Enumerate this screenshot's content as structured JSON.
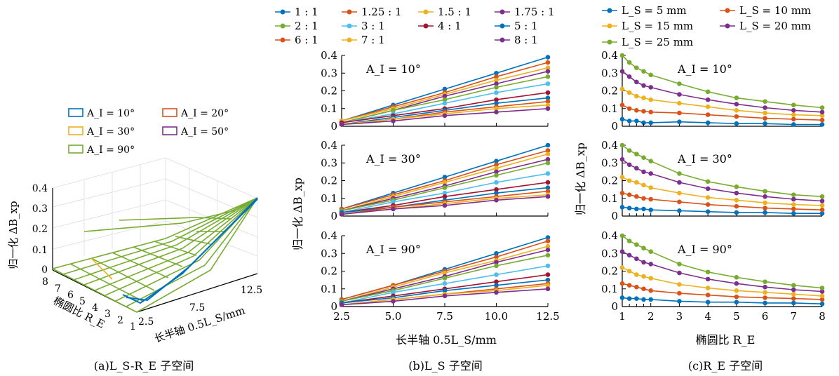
{
  "panel_a": {
    "caption": "(a)L_S-R_E 子空间",
    "ylabel": "归一化 ΔB_xp",
    "xlabel": "长半轴 0.5L_S/mm",
    "rlabel": "椭圆比 R_E",
    "legend": [
      "A_I = 10°",
      "A_I = 20°",
      "A_I = 30°",
      "A_I = 50°",
      "A_I = 90°"
    ],
    "z_ticks": [
      "0",
      "0.1",
      "0.2",
      "0.3",
      "0.4"
    ],
    "x_ticks": [
      "2.5",
      "7.5",
      "12.5"
    ],
    "r_ticks": [
      "8",
      "7",
      "6",
      "5",
      "4",
      "3",
      "2",
      "1"
    ]
  },
  "panel_b": {
    "caption": "(b)L_S 子空间",
    "ylabel": "归一化 ΔB_xp",
    "xlabel": "长半轴 0.5L_S/mm",
    "legend": [
      "1 : 1",
      "1.25 : 1",
      "1.5 : 1",
      "1.75 : 1",
      "2 : 1",
      "3 : 1",
      "4 : 1",
      "5 : 1",
      "6 : 1",
      "7 : 1",
      "8 : 1"
    ],
    "x_ticks": [
      "2.5",
      "5.0",
      "7.5",
      "10.0",
      "12.5"
    ],
    "y_ticks": [
      "0",
      "0.1",
      "0.2",
      "0.3",
      "0.4"
    ],
    "subplot_labels": [
      "A_I = 10°",
      "A_I = 30°",
      "A_I = 90°"
    ]
  },
  "panel_c": {
    "caption": "(c)R_E 子空间",
    "ylabel": "归一化 ΔB_xp",
    "xlabel": "椭圆比 R_E",
    "legend": [
      "L_S = 5 mm",
      "L_S = 10 mm",
      "L_S = 15 mm",
      "L_S = 20 mm",
      "L_S = 25 mm"
    ],
    "x_ticks": [
      "1",
      "2",
      "3",
      "4",
      "5",
      "6",
      "7",
      "8"
    ],
    "y_ticks": [
      "0",
      "0.1",
      "0.2",
      "0.3",
      "0.4"
    ],
    "subplot_labels": [
      "A_I = 10°",
      "A_I = 30°",
      "A_I = 90°"
    ]
  },
  "colors": {
    "blue": "#0072BD",
    "orange": "#D95319",
    "yellow": "#EDB120",
    "purple": "#7E2F8E",
    "green": "#77AC30",
    "cyan": "#4DBEEE",
    "darkred": "#A2142F"
  },
  "chart_data": [
    {
      "type": "line",
      "title": "L_S 子空间",
      "x": [
        2.5,
        5.0,
        7.5,
        10.0,
        12.5
      ],
      "xlim": [
        2.5,
        12.5
      ],
      "ylim": [
        0,
        0.4
      ],
      "subplots": [
        {
          "label": "A_I = 10°",
          "series": [
            {
              "name": "1 : 1",
              "color": "#0072BD",
              "values": [
                0.03,
                0.12,
                0.21,
                0.3,
                0.39
              ]
            },
            {
              "name": "1.25 : 1",
              "color": "#D95319",
              "values": [
                0.03,
                0.11,
                0.19,
                0.28,
                0.36
              ]
            },
            {
              "name": "1.5 : 1",
              "color": "#EDB120",
              "values": [
                0.03,
                0.1,
                0.18,
                0.26,
                0.33
              ]
            },
            {
              "name": "1.75 : 1",
              "color": "#7E2F8E",
              "values": [
                0.02,
                0.09,
                0.17,
                0.24,
                0.31
              ]
            },
            {
              "name": "2 : 1",
              "color": "#77AC30",
              "values": [
                0.02,
                0.09,
                0.15,
                0.22,
                0.28
              ]
            },
            {
              "name": "3 : 1",
              "color": "#4DBEEE",
              "values": [
                0.02,
                0.07,
                0.13,
                0.19,
                0.24
              ]
            },
            {
              "name": "4 : 1",
              "color": "#A2142F",
              "values": [
                0.02,
                0.06,
                0.1,
                0.15,
                0.19
              ]
            },
            {
              "name": "5 : 1",
              "color": "#0072BD",
              "values": [
                0.01,
                0.05,
                0.09,
                0.13,
                0.16
              ]
            },
            {
              "name": "6 : 1",
              "color": "#D95319",
              "values": [
                0.01,
                0.04,
                0.08,
                0.11,
                0.14
              ]
            },
            {
              "name": "7 : 1",
              "color": "#EDB120",
              "values": [
                0.01,
                0.04,
                0.07,
                0.1,
                0.12
              ]
            },
            {
              "name": "8 : 1",
              "color": "#7E2F8E",
              "values": [
                0.01,
                0.03,
                0.06,
                0.08,
                0.1
              ]
            }
          ]
        },
        {
          "label": "A_I = 30°",
          "series": [
            {
              "name": "1 : 1",
              "color": "#0072BD",
              "values": [
                0.04,
                0.13,
                0.22,
                0.31,
                0.4
              ]
            },
            {
              "name": "1.25 : 1",
              "color": "#D95319",
              "values": [
                0.04,
                0.12,
                0.2,
                0.29,
                0.37
              ]
            },
            {
              "name": "1.5 : 1",
              "color": "#EDB120",
              "values": [
                0.03,
                0.11,
                0.19,
                0.27,
                0.35
              ]
            },
            {
              "name": "1.75 : 1",
              "color": "#7E2F8E",
              "values": [
                0.03,
                0.1,
                0.17,
                0.25,
                0.32
              ]
            },
            {
              "name": "2 : 1",
              "color": "#77AC30",
              "values": [
                0.03,
                0.09,
                0.16,
                0.23,
                0.3
              ]
            },
            {
              "name": "3 : 1",
              "color": "#4DBEEE",
              "values": [
                0.02,
                0.08,
                0.13,
                0.19,
                0.24
              ]
            },
            {
              "name": "4 : 1",
              "color": "#A2142F",
              "values": [
                0.02,
                0.06,
                0.11,
                0.15,
                0.19
              ]
            },
            {
              "name": "5 : 1",
              "color": "#0072BD",
              "values": [
                0.02,
                0.05,
                0.09,
                0.13,
                0.16
              ]
            },
            {
              "name": "6 : 1",
              "color": "#D95319",
              "values": [
                0.01,
                0.05,
                0.08,
                0.11,
                0.14
              ]
            },
            {
              "name": "7 : 1",
              "color": "#EDB120",
              "values": [
                0.01,
                0.04,
                0.07,
                0.1,
                0.12
              ]
            },
            {
              "name": "8 : 1",
              "color": "#7E2F8E",
              "values": [
                0.01,
                0.04,
                0.06,
                0.09,
                0.11
              ]
            }
          ]
        },
        {
          "label": "A_I = 90°",
          "series": [
            {
              "name": "1 : 1",
              "color": "#0072BD",
              "values": [
                0.04,
                0.12,
                0.21,
                0.3,
                0.39
              ]
            },
            {
              "name": "1.25 : 1",
              "color": "#D95319",
              "values": [
                0.04,
                0.12,
                0.2,
                0.28,
                0.37
              ]
            },
            {
              "name": "1.5 : 1",
              "color": "#EDB120",
              "values": [
                0.03,
                0.11,
                0.19,
                0.26,
                0.34
              ]
            },
            {
              "name": "1.75 : 1",
              "color": "#7E2F8E",
              "values": [
                0.03,
                0.1,
                0.17,
                0.25,
                0.32
              ]
            },
            {
              "name": "2 : 1",
              "color": "#77AC30",
              "values": [
                0.03,
                0.09,
                0.16,
                0.23,
                0.29
              ]
            },
            {
              "name": "3 : 1",
              "color": "#4DBEEE",
              "values": [
                0.02,
                0.08,
                0.13,
                0.18,
                0.23
              ]
            },
            {
              "name": "4 : 1",
              "color": "#A2142F",
              "values": [
                0.02,
                0.06,
                0.1,
                0.14,
                0.18
              ]
            },
            {
              "name": "5 : 1",
              "color": "#0072BD",
              "values": [
                0.02,
                0.05,
                0.09,
                0.12,
                0.15
              ]
            },
            {
              "name": "6 : 1",
              "color": "#D95319",
              "values": [
                0.01,
                0.04,
                0.07,
                0.1,
                0.13
              ]
            },
            {
              "name": "7 : 1",
              "color": "#EDB120",
              "values": [
                0.01,
                0.04,
                0.07,
                0.09,
                0.12
              ]
            },
            {
              "name": "8 : 1",
              "color": "#7E2F8E",
              "values": [
                0.01,
                0.03,
                0.06,
                0.08,
                0.1
              ]
            }
          ]
        }
      ]
    },
    {
      "type": "line",
      "title": "R_E 子空间",
      "x": [
        1,
        1.25,
        1.5,
        1.75,
        2,
        3,
        4,
        5,
        6,
        7,
        8
      ],
      "xlim": [
        1,
        8
      ],
      "ylim": [
        0,
        0.4
      ],
      "subplots": [
        {
          "label": "A_I = 10°",
          "series": [
            {
              "name": "L_S = 5 mm",
              "color": "#0072BD",
              "values": [
                0.04,
                0.03,
                0.03,
                0.02,
                0.02,
                0.025,
                0.02,
                0.015,
                0.015,
                0.01,
                0.01
              ]
            },
            {
              "name": "L_S = 10 mm",
              "color": "#D95319",
              "values": [
                0.12,
                0.1,
                0.09,
                0.085,
                0.08,
                0.075,
                0.065,
                0.055,
                0.045,
                0.04,
                0.035
              ]
            },
            {
              "name": "L_S = 15 mm",
              "color": "#EDB120",
              "values": [
                0.21,
                0.19,
                0.17,
                0.16,
                0.15,
                0.13,
                0.11,
                0.09,
                0.075,
                0.065,
                0.06
              ]
            },
            {
              "name": "L_S = 20 mm",
              "color": "#7E2F8E",
              "values": [
                0.31,
                0.28,
                0.25,
                0.23,
                0.22,
                0.18,
                0.15,
                0.125,
                0.105,
                0.09,
                0.08
              ]
            },
            {
              "name": "L_S = 25 mm",
              "color": "#77AC30",
              "values": [
                0.4,
                0.36,
                0.33,
                0.31,
                0.29,
                0.24,
                0.195,
                0.16,
                0.14,
                0.12,
                0.105
              ]
            }
          ]
        },
        {
          "label": "A_I = 30°",
          "series": [
            {
              "name": "L_S = 5 mm",
              "color": "#0072BD",
              "values": [
                0.05,
                0.045,
                0.04,
                0.04,
                0.035,
                0.03,
                0.025,
                0.02,
                0.02,
                0.015,
                0.015
              ]
            },
            {
              "name": "L_S = 10 mm",
              "color": "#D95319",
              "values": [
                0.13,
                0.12,
                0.11,
                0.1,
                0.095,
                0.08,
                0.065,
                0.055,
                0.045,
                0.04,
                0.035
              ]
            },
            {
              "name": "L_S = 15 mm",
              "color": "#EDB120",
              "values": [
                0.22,
                0.2,
                0.19,
                0.175,
                0.16,
                0.13,
                0.105,
                0.09,
                0.075,
                0.065,
                0.06
              ]
            },
            {
              "name": "L_S = 20 mm",
              "color": "#7E2F8E",
              "values": [
                0.32,
                0.29,
                0.27,
                0.25,
                0.24,
                0.19,
                0.155,
                0.13,
                0.11,
                0.095,
                0.085
              ]
            },
            {
              "name": "L_S = 25 mm",
              "color": "#77AC30",
              "values": [
                0.4,
                0.37,
                0.35,
                0.33,
                0.31,
                0.24,
                0.195,
                0.165,
                0.14,
                0.12,
                0.11
              ]
            }
          ]
        },
        {
          "label": "A_I = 90°",
          "series": [
            {
              "name": "L_S = 5 mm",
              "color": "#0072BD",
              "values": [
                0.05,
                0.045,
                0.045,
                0.04,
                0.04,
                0.03,
                0.025,
                0.025,
                0.02,
                0.02,
                0.015
              ]
            },
            {
              "name": "L_S = 10 mm",
              "color": "#D95319",
              "values": [
                0.13,
                0.12,
                0.11,
                0.1,
                0.09,
                0.075,
                0.065,
                0.055,
                0.05,
                0.045,
                0.04
              ]
            },
            {
              "name": "L_S = 15 mm",
              "color": "#EDB120",
              "values": [
                0.22,
                0.2,
                0.18,
                0.17,
                0.16,
                0.125,
                0.105,
                0.09,
                0.08,
                0.07,
                0.06
              ]
            },
            {
              "name": "L_S = 20 mm",
              "color": "#7E2F8E",
              "values": [
                0.31,
                0.29,
                0.27,
                0.25,
                0.24,
                0.19,
                0.155,
                0.13,
                0.11,
                0.095,
                0.085
              ]
            },
            {
              "name": "L_S = 25 mm",
              "color": "#77AC30",
              "values": [
                0.4,
                0.37,
                0.35,
                0.33,
                0.31,
                0.24,
                0.195,
                0.165,
                0.14,
                0.12,
                0.105
              ]
            }
          ]
        }
      ]
    }
  ]
}
